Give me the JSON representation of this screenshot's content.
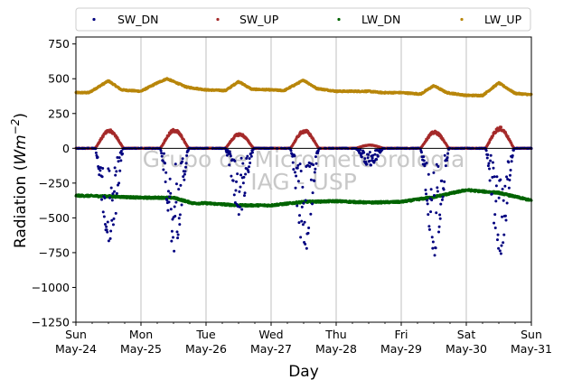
{
  "chart_data": {
    "type": "scatter",
    "title": "",
    "ylabel_prefix": "Radiation (",
    "ylabel_unit_base": "Wm",
    "ylabel_unit_exp": "−2",
    "ylabel_suffix": ")",
    "xlabel": "Day",
    "ylim": [
      -1250,
      800
    ],
    "xlim": [
      "2020-05-24",
      "2020-05-31"
    ],
    "yticks": [
      -1250,
      -1000,
      -750,
      -500,
      -250,
      0,
      250,
      500,
      750
    ],
    "ytick_labels": [
      "−1250",
      "−1000",
      "−750",
      "−500",
      "−250",
      "0",
      "250",
      "500",
      "750"
    ],
    "xticks": [
      {
        "day": "Sun",
        "date": "May-24"
      },
      {
        "day": "Mon",
        "date": "May-25"
      },
      {
        "day": "Tue",
        "date": "May-26"
      },
      {
        "day": "Wed",
        "date": "May-27"
      },
      {
        "day": "Thu",
        "date": "May-28"
      },
      {
        "day": "Fri",
        "date": "May-29"
      },
      {
        "day": "Sat",
        "date": "May-30"
      },
      {
        "day": "Sun",
        "date": "May-31"
      }
    ],
    "grid": "x-major",
    "zero_line": true,
    "legend_position": "top, outside plot",
    "watermark": [
      "Grupo de Micrometeorologia",
      "IAG - USP"
    ],
    "series": [
      {
        "name": "SW_DN",
        "color": "#00007f",
        "daily_min": [
          -720,
          -740,
          -480,
          -750,
          -130,
          -780,
          -810
        ]
      },
      {
        "name": "SW_UP",
        "color": "#a52a2a",
        "daily_max": [
          135,
          140,
          110,
          135,
          25,
          125,
          155
        ]
      },
      {
        "name": "LW_DN",
        "color": "#006400",
        "x": [
          0,
          0.5,
          1,
          1.5,
          1.8,
          2,
          2.5,
          3,
          3.5,
          4,
          4.5,
          5,
          5.5,
          6,
          6.5,
          7
        ],
        "y": [
          -340,
          -345,
          -355,
          -355,
          -395,
          -395,
          -410,
          -410,
          -385,
          -380,
          -390,
          -385,
          -350,
          -300,
          -320,
          -375
        ]
      },
      {
        "name": "LW_UP",
        "color": "#b8860b",
        "x": [
          0,
          0.2,
          0.5,
          0.7,
          1,
          1.25,
          1.4,
          1.7,
          2,
          2.3,
          2.5,
          2.7,
          3,
          3.2,
          3.5,
          3.7,
          4,
          4.3,
          4.5,
          4.7,
          5,
          5.3,
          5.5,
          5.7,
          6,
          6.25,
          6.5,
          6.75,
          7
        ],
        "y": [
          400,
          400,
          485,
          420,
          410,
          470,
          500,
          440,
          420,
          415,
          480,
          425,
          420,
          415,
          490,
          430,
          410,
          410,
          410,
          400,
          400,
          390,
          450,
          400,
          380,
          380,
          470,
          395,
          385
        ]
      }
    ]
  }
}
